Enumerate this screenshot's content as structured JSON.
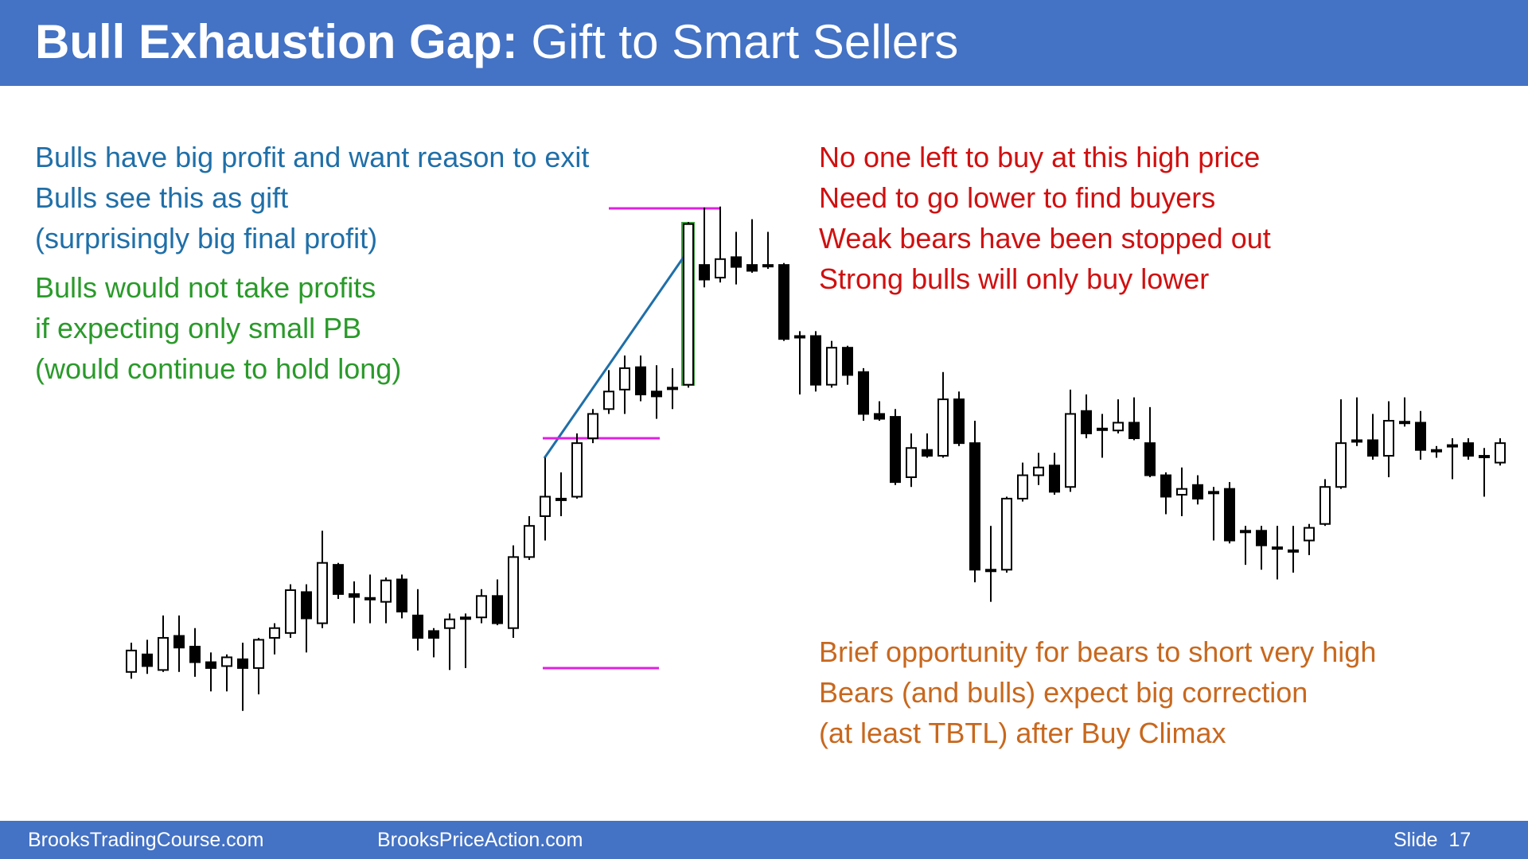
{
  "header": {
    "title_bold": "Bull Exhaustion Gap:",
    "title_rest": "Gift to Smart Sellers"
  },
  "left_notes": {
    "blue": [
      "Bulls have big profit and want reason to exit",
      "Bulls see this as gift",
      "(surprisingly big final profit)"
    ],
    "green": [
      "Bulls would not take profits",
      "if expecting only small PB",
      "(would continue to hold long)"
    ]
  },
  "right_notes": {
    "red": [
      "No one left to buy at this high price",
      "Need to go lower to find buyers",
      "Weak bears have been stopped out",
      "Strong bulls will only buy lower"
    ],
    "orange": [
      "Brief opportunity for bears to short very high",
      "Bears (and bulls) expect big correction",
      "(at least TBTL) after Buy Climax"
    ]
  },
  "footer": {
    "left": "BrooksTradingCourse.com",
    "center": "BrooksPriceAction.com",
    "slide": "Slide  17"
  },
  "chart_data": {
    "type": "candlestick",
    "ylim": [
      60,
      600
    ],
    "open": [
      110,
      128,
      112,
      147,
      136,
      120,
      116,
      123,
      114,
      145,
      150,
      192,
      160,
      220,
      190,
      186,
      182,
      205,
      168,
      152,
      155,
      166,
      166,
      188,
      155,
      228,
      270,
      288,
      290,
      350,
      380,
      400,
      423,
      398,
      402,
      405,
      528,
      515,
      536,
      528,
      528,
      528,
      455,
      455,
      405,
      443,
      418,
      375,
      372,
      310,
      338,
      332,
      390,
      345,
      215,
      215,
      288,
      312,
      322,
      300,
      378,
      360,
      358,
      366,
      345,
      312,
      292,
      302,
      295,
      298,
      255,
      255,
      238,
      235,
      245,
      262,
      300,
      348,
      348,
      332,
      367,
      366,
      338,
      343,
      345,
      332,
      325
    ],
    "high": [
      140,
      143,
      168,
      168,
      155,
      130,
      128,
      140,
      145,
      160,
      200,
      200,
      255,
      222,
      203,
      210,
      207,
      210,
      195,
      155,
      170,
      170,
      195,
      205,
      240,
      270,
      330,
      315,
      355,
      380,
      420,
      435,
      435,
      425,
      422,
      572,
      587,
      588,
      562,
      575,
      562,
      530,
      460,
      460,
      450,
      445,
      422,
      388,
      380,
      355,
      355,
      418,
      398,
      368,
      260,
      290,
      325,
      335,
      335,
      400,
      395,
      375,
      390,
      392,
      382,
      315,
      320,
      312,
      300,
      305,
      260,
      260,
      260,
      260,
      262,
      308,
      390,
      392,
      375,
      388,
      392,
      378,
      342,
      350,
      350,
      340,
      350
    ],
    "low": [
      103,
      108,
      110,
      110,
      105,
      90,
      90,
      70,
      87,
      128,
      145,
      130,
      155,
      185,
      160,
      160,
      160,
      165,
      132,
      125,
      112,
      114,
      160,
      158,
      145,
      225,
      245,
      270,
      288,
      345,
      375,
      375,
      388,
      370,
      380,
      402,
      505,
      510,
      508,
      520,
      524,
      450,
      395,
      398,
      402,
      405,
      368,
      368,
      302,
      300,
      330,
      330,
      342,
      202,
      182,
      212,
      285,
      302,
      292,
      295,
      350,
      330,
      355,
      348,
      310,
      272,
      270,
      282,
      245,
      242,
      220,
      215,
      205,
      212,
      230,
      260,
      298,
      342,
      328,
      310,
      362,
      328,
      330,
      308,
      328,
      290,
      322
    ],
    "close": [
      132,
      116,
      145,
      135,
      120,
      114,
      125,
      114,
      143,
      155,
      194,
      165,
      222,
      190,
      187,
      185,
      204,
      172,
      145,
      145,
      164,
      166,
      188,
      160,
      228,
      260,
      290,
      288,
      345,
      375,
      398,
      422,
      395,
      393,
      402,
      570,
      513,
      534,
      526,
      522,
      528,
      452,
      455,
      405,
      443,
      415,
      375,
      370,
      305,
      340,
      332,
      390,
      345,
      215,
      215,
      288,
      312,
      320,
      295,
      375,
      355,
      360,
      366,
      350,
      312,
      290,
      298,
      288,
      295,
      245,
      255,
      240,
      238,
      235,
      258,
      300,
      345,
      348,
      332,
      368,
      367,
      338,
      338,
      343,
      332,
      332,
      345
    ]
  }
}
